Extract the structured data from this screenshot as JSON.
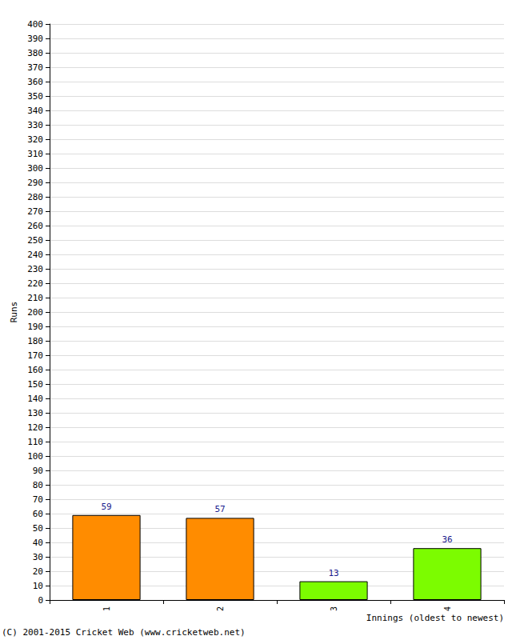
{
  "chart_data": {
    "type": "bar",
    "categories": [
      "1",
      "2",
      "3",
      "4"
    ],
    "values": [
      59,
      57,
      13,
      36
    ],
    "colors": [
      "#ff8c00",
      "#ff8c00",
      "#7cfc00",
      "#7cfc00"
    ],
    "y_label": "Runs",
    "x_label": "Innings (oldest to newest)",
    "annotations": [
      "(C) 2001-2015 Cricket Web (www.cricketweb.net)"
    ],
    "ylim": [
      0,
      400
    ],
    "yticks": [
      0,
      10,
      20,
      30,
      40,
      50,
      60,
      70,
      80,
      90,
      100,
      110,
      120,
      130,
      140,
      150,
      160,
      170,
      180,
      190,
      200,
      210,
      220,
      230,
      240,
      250,
      260,
      270,
      280,
      290,
      300,
      310,
      320,
      330,
      340,
      350,
      360,
      370,
      380,
      390,
      400
    ],
    "grid": true,
    "data_labels": true
  }
}
